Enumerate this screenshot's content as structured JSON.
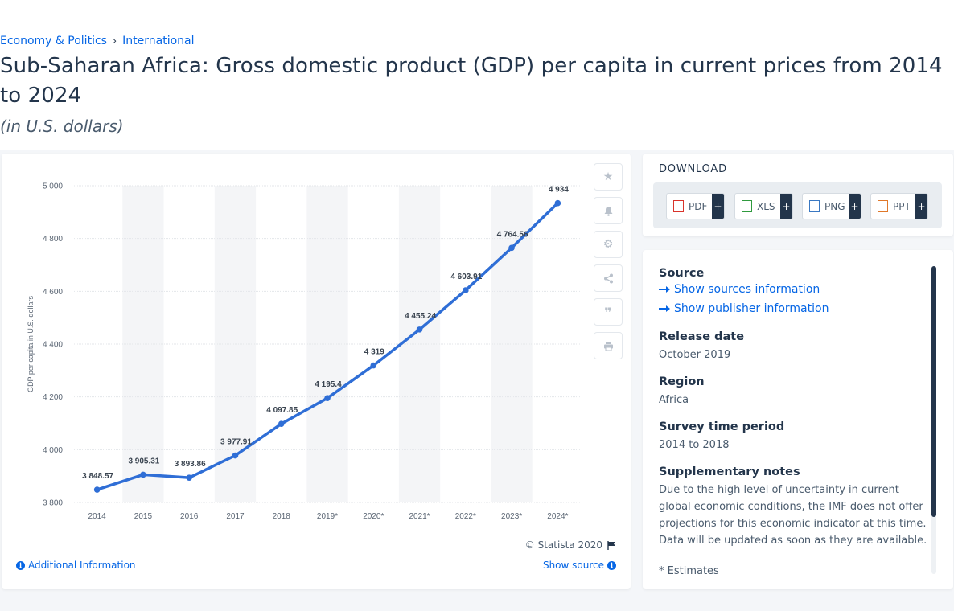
{
  "breadcrumb": {
    "item1": "Economy & Politics",
    "separator": "›",
    "item2": "International"
  },
  "page": {
    "title": "Sub-Saharan Africa: Gross domestic product (GDP) per capita in current prices from 2014 to 2024",
    "subtitle": "(in U.S. dollars)"
  },
  "chart_footer": {
    "copyright": "© Statista 2020",
    "additional_info": "Additional Information",
    "show_source": "Show source"
  },
  "toolbar_icons": [
    "star-icon",
    "bell-icon",
    "gear-icon",
    "share-icon",
    "quote-icon",
    "print-icon"
  ],
  "download": {
    "title": "DOWNLOAD",
    "buttons": [
      {
        "label": "PDF",
        "plus": "+",
        "color": "#d9332b"
      },
      {
        "label": "XLS",
        "plus": "+",
        "color": "#2f9a3e"
      },
      {
        "label": "PNG",
        "plus": "+",
        "color": "#3a78c2"
      },
      {
        "label": "PPT",
        "plus": "+",
        "color": "#e0782a"
      }
    ]
  },
  "info": {
    "source_label": "Source",
    "show_sources": "Show sources information",
    "show_publisher": "Show publisher information",
    "release_label": "Release date",
    "release_value": "October 2019",
    "region_label": "Region",
    "region_value": "Africa",
    "survey_label": "Survey time period",
    "survey_value": "2014 to 2018",
    "notes_label": "Supplementary notes",
    "notes_value": "Due to the high level of uncertainty in current global economic conditions, the IMF does not offer projections for this economic indicator at this time. Data will be updated as soon as they are available.",
    "footnote": "* Estimates"
  },
  "colors": {
    "line": "#2f6ed6",
    "accent": "#0666e5",
    "text": "#23354b"
  },
  "chart_data": {
    "type": "line",
    "categories": [
      "2014",
      "2015",
      "2016",
      "2017",
      "2018",
      "2019*",
      "2020*",
      "2021*",
      "2022*",
      "2023*",
      "2024*"
    ],
    "values": [
      3848.57,
      3905.31,
      3893.86,
      3977.91,
      4097.85,
      4195.4,
      4319,
      4455.24,
      4603.91,
      4764.56,
      4934
    ],
    "value_labels": [
      "3 848.57",
      "3 905.31",
      "3 893.86",
      "3 977.91",
      "4 097.85",
      "4 195.4",
      "4 319",
      "4 455.24",
      "4 603.91",
      "4 764.56",
      "4 934"
    ],
    "ylabel": "GDP per capita in U.S. dollars",
    "ylim": [
      3800,
      5000
    ],
    "yticks": [
      3800,
      4000,
      4200,
      4400,
      4600,
      4800,
      5000
    ],
    "ytick_labels": [
      "3 800",
      "4 000",
      "4 200",
      "4 400",
      "4 600",
      "4 800",
      "5 000"
    ],
    "grid": true,
    "legend": "none"
  }
}
